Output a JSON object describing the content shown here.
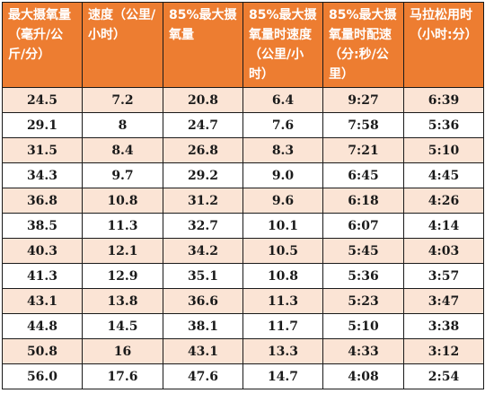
{
  "table": {
    "headers": [
      "最大摄氧量（毫升/公斤/分）",
      "速度（公里/小时）",
      "85%最大摄氧量",
      "85%最大摄氧量时速度（公里/小时）",
      "85%最大摄氧量时配速（分:秒/公里）",
      "马拉松用时（小时:分）"
    ],
    "rows": [
      [
        "24.5",
        "7.2",
        "20.8",
        "6.4",
        "9:27",
        "6:39"
      ],
      [
        "29.1",
        "8",
        "24.7",
        "7.6",
        "7:58",
        "5:36"
      ],
      [
        "31.5",
        "8.4",
        "26.8",
        "8.3",
        "7:21",
        "5:10"
      ],
      [
        "34.3",
        "9.7",
        "29.2",
        "9.0",
        "6:45",
        "4:45"
      ],
      [
        "36.8",
        "10.8",
        "31.2",
        "9.6",
        "6:18",
        "4:26"
      ],
      [
        "38.5",
        "11.3",
        "32.7",
        "10.1",
        "6:07",
        "4:14"
      ],
      [
        "40.3",
        "12.1",
        "34.2",
        "10.5",
        "5:45",
        "4:03"
      ],
      [
        "41.3",
        "12.9",
        "35.1",
        "10.8",
        "5:36",
        "3:57"
      ],
      [
        "43.1",
        "13.8",
        "36.6",
        "11.3",
        "5:23",
        "3:47"
      ],
      [
        "44.8",
        "14.5",
        "38.1",
        "11.7",
        "5:10",
        "3:38"
      ],
      [
        "50.8",
        "16",
        "43.1",
        "13.3",
        "4:33",
        "3:12"
      ],
      [
        "56.0",
        "17.6",
        "47.6",
        "14.7",
        "4:08",
        "2:54"
      ]
    ]
  },
  "colors": {
    "header_background": "#ed7d31",
    "header_text": "#ffffff",
    "band_row": "#fbe4d5",
    "plain_row": "#ffffff",
    "border": "#1a1a1a"
  }
}
